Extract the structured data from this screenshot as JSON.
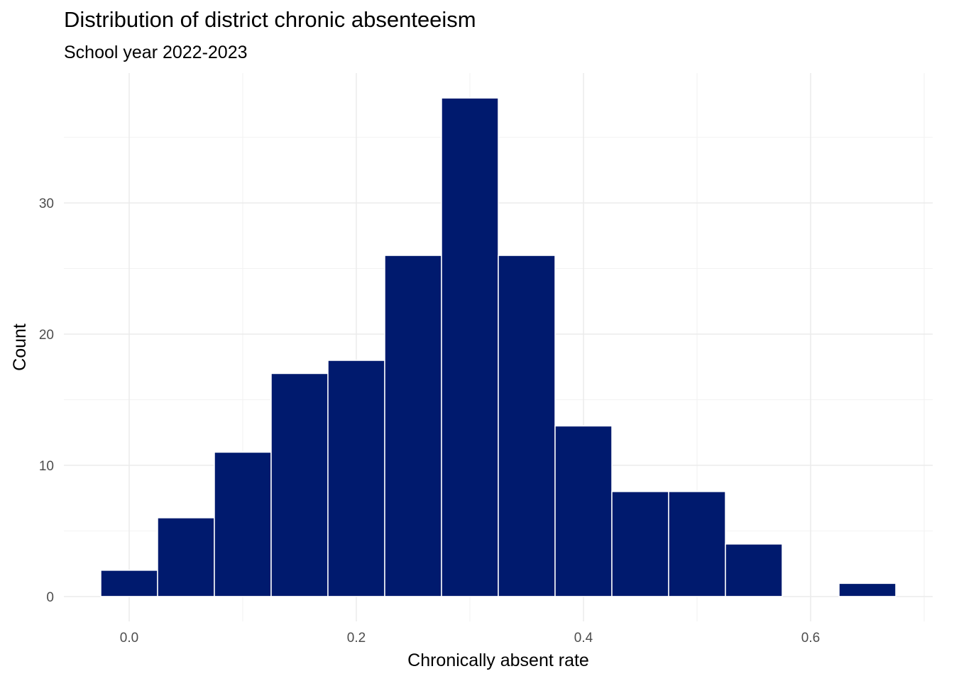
{
  "chart_data": {
    "type": "bar",
    "title": "Distribution of district chronic absenteeism",
    "subtitle": "School year 2022-2023",
    "xlabel": "Chronically absent rate",
    "ylabel": "Count",
    "bin_width": 0.05,
    "bins": [
      {
        "x_start": -0.025,
        "x_end": 0.025,
        "count": 2
      },
      {
        "x_start": 0.025,
        "x_end": 0.075,
        "count": 6
      },
      {
        "x_start": 0.075,
        "x_end": 0.125,
        "count": 11
      },
      {
        "x_start": 0.125,
        "x_end": 0.175,
        "count": 17
      },
      {
        "x_start": 0.175,
        "x_end": 0.225,
        "count": 18
      },
      {
        "x_start": 0.225,
        "x_end": 0.275,
        "count": 26
      },
      {
        "x_start": 0.275,
        "x_end": 0.325,
        "count": 38
      },
      {
        "x_start": 0.325,
        "x_end": 0.375,
        "count": 26
      },
      {
        "x_start": 0.375,
        "x_end": 0.425,
        "count": 13
      },
      {
        "x_start": 0.425,
        "x_end": 0.475,
        "count": 8
      },
      {
        "x_start": 0.475,
        "x_end": 0.525,
        "count": 8
      },
      {
        "x_start": 0.525,
        "x_end": 0.575,
        "count": 4
      },
      {
        "x_start": 0.575,
        "x_end": 0.625,
        "count": 0
      },
      {
        "x_start": 0.625,
        "x_end": 0.675,
        "count": 1
      }
    ],
    "xlim": [
      -0.0575,
      0.7075
    ],
    "ylim": [
      -1.9,
      39.9
    ],
    "x_ticks": [
      {
        "value": 0.0,
        "label": "0.0"
      },
      {
        "value": 0.2,
        "label": "0.2"
      },
      {
        "value": 0.4,
        "label": "0.4"
      },
      {
        "value": 0.6,
        "label": "0.6"
      }
    ],
    "x_minor": [
      0.1,
      0.3,
      0.5,
      0.7
    ],
    "y_ticks": [
      {
        "value": 0,
        "label": "0"
      },
      {
        "value": 10,
        "label": "10"
      },
      {
        "value": 20,
        "label": "20"
      },
      {
        "value": 30,
        "label": "30"
      }
    ],
    "y_minor": [
      5,
      15,
      25,
      35
    ],
    "grid": true,
    "legend": "none",
    "colors": {
      "bar_fill": "#001a6e",
      "bar_border": "#ffffff",
      "grid_major": "#ebebeb",
      "grid_minor": "#f2f2f2"
    }
  }
}
